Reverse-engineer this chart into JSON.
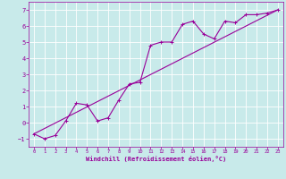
{
  "xlabel": "Windchill (Refroidissement éolien,°C)",
  "background_color": "#c8eaea",
  "grid_color": "#ffffff",
  "line_color": "#990099",
  "xlim": [
    -0.5,
    23.5
  ],
  "ylim": [
    -1.5,
    7.5
  ],
  "xticks": [
    0,
    1,
    2,
    3,
    4,
    5,
    6,
    7,
    8,
    9,
    10,
    11,
    12,
    13,
    14,
    15,
    16,
    17,
    18,
    19,
    20,
    21,
    22,
    23
  ],
  "yticks": [
    -1,
    0,
    1,
    2,
    3,
    4,
    5,
    6,
    7
  ],
  "scatter_x": [
    0,
    1,
    2,
    3,
    4,
    5,
    6,
    7,
    8,
    9,
    10,
    11,
    12,
    13,
    14,
    15,
    16,
    17,
    18,
    19,
    20,
    21,
    22,
    23
  ],
  "scatter_y": [
    -0.7,
    -1.0,
    -0.8,
    0.1,
    1.2,
    1.1,
    0.1,
    0.3,
    1.4,
    2.4,
    2.5,
    4.8,
    5.0,
    5.0,
    6.1,
    6.3,
    5.5,
    5.2,
    6.3,
    6.2,
    6.7,
    6.7,
    6.8,
    7.0
  ],
  "line_x": [
    0,
    23
  ],
  "line_y": [
    -0.7,
    7.0
  ],
  "figsize": [
    3.2,
    2.0
  ],
  "dpi": 100
}
